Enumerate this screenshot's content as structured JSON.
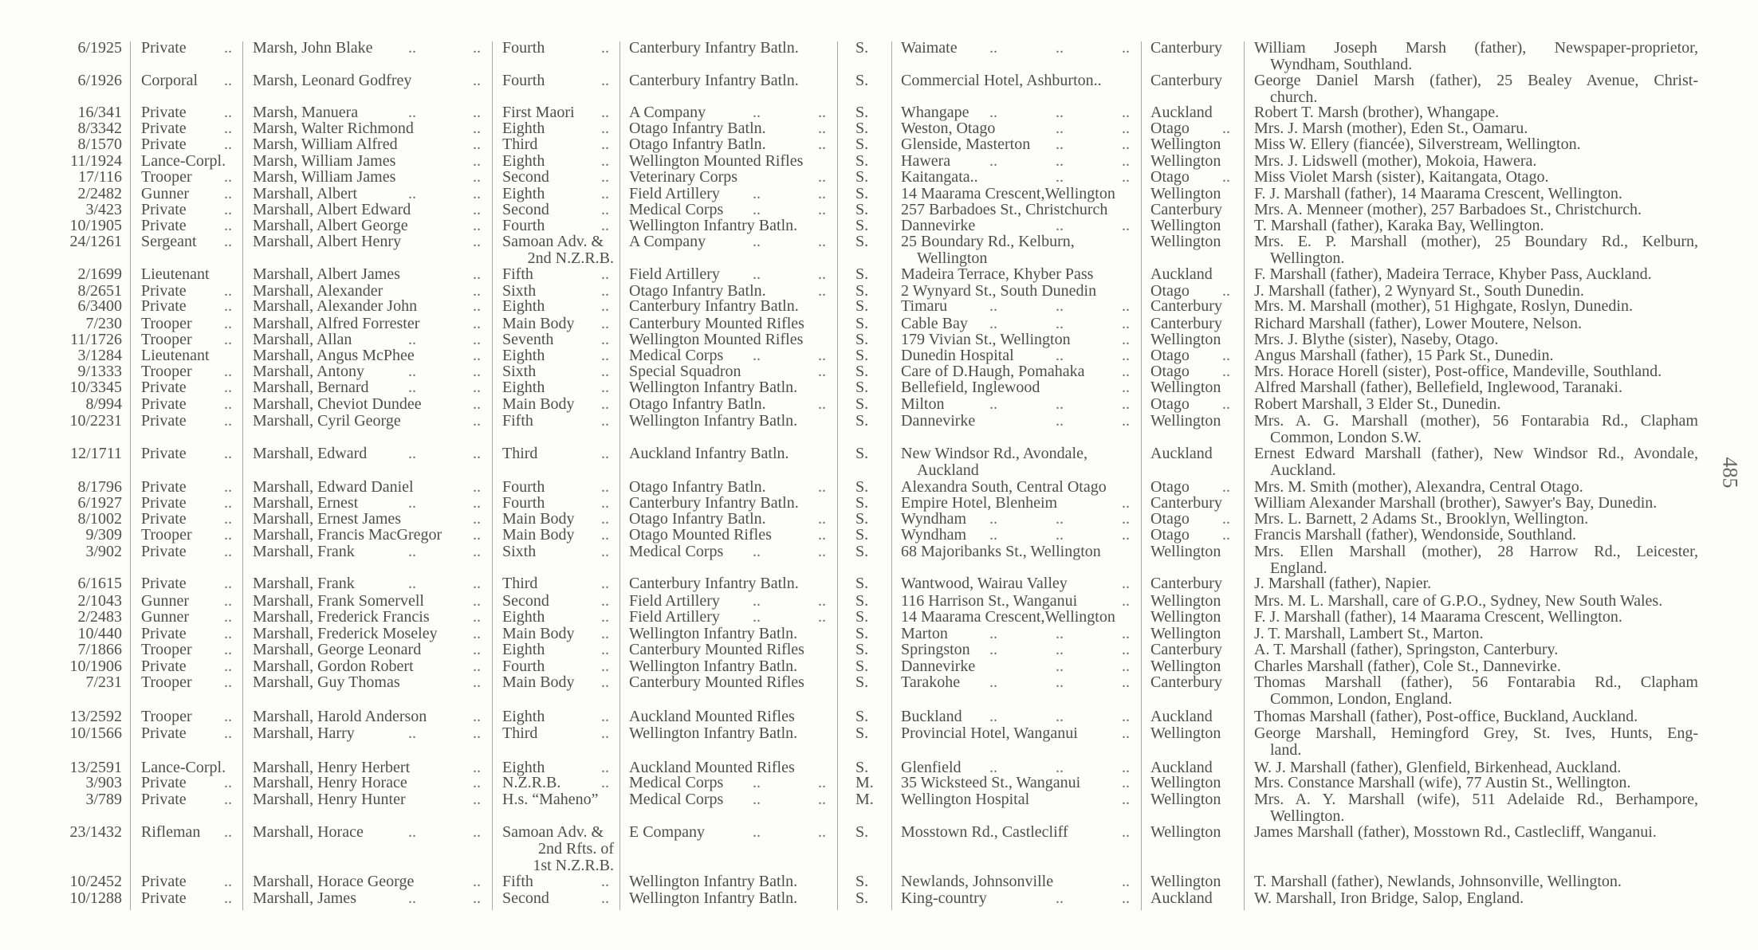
{
  "page_number": "485",
  "rows": [
    {
      "serial": "6/1925",
      "rank": "Private ..",
      "name": "Marsh, John Blake .. ..",
      "draft": "Fourth ..",
      "unit": "Canterbury Infantry Batln.",
      "status": "S.",
      "address": "Waimate .. .. ..",
      "district": "Canterbury",
      "next_of_kin": "William Joseph Marsh (father), Newspaper-proprietor,\nWyndham, Southland."
    },
    {
      "serial": "6/1926",
      "rank": "Corporal ..",
      "name": "Marsh, Leonard Godfrey ..",
      "draft": "Fourth ..",
      "unit": "Canterbury Infantry Batln.",
      "status": "S.",
      "address": "Commercial Hotel, Ashburton..",
      "district": "Canterbury",
      "next_of_kin": "George Daniel Marsh (father), 25 Bealey Avenue, Christ-\nchurch."
    },
    {
      "serial": "16/341",
      "rank": "Private ..",
      "name": "Marsh, Manuera .. ..",
      "draft": "First Maori ..",
      "unit": "A Company .. ..",
      "status": "S.",
      "address": "Whangape .. .. ..",
      "district": "Auckland",
      "next_of_kin": "Robert T. Marsh (brother), Whangape."
    },
    {
      "serial": "8/3342",
      "rank": "Private ..",
      "name": "Marsh, Walter Richmond ..",
      "draft": "Eighth ..",
      "unit": "Otago Infantry Batln. ..",
      "status": "S.",
      "address": "Weston, Otago .. ..",
      "district": "Otago ..",
      "next_of_kin": "Mrs. J. Marsh (mother), Eden St., Oamaru."
    },
    {
      "serial": "8/1570",
      "rank": "Private ..",
      "name": "Marsh, William Alfred ..",
      "draft": "Third ..",
      "unit": "Otago Infantry Batln. ..",
      "status": "S.",
      "address": "Glenside, Masterton .. ..",
      "district": "Wellington",
      "next_of_kin": "Miss W. Ellery (fiancée), Silverstream, Wellington."
    },
    {
      "serial": "11/1924",
      "rank": "Lance-Corpl.",
      "name": "Marsh, William James ..",
      "draft": "Eighth ..",
      "unit": "Wellington Mounted Rifles",
      "status": "S.",
      "address": "Hawera .. .. ..",
      "district": "Wellington",
      "next_of_kin": "Mrs. J. Lidswell (mother), Mokoia, Hawera."
    },
    {
      "serial": "17/116",
      "rank": "Trooper ..",
      "name": "Marsh, William James ..",
      "draft": "Second ..",
      "unit": "Veterinary Corps ..",
      "status": "S.",
      "address": "Kaitangata.. .. ..",
      "district": "Otago ..",
      "next_of_kin": "Miss Violet Marsh (sister), Kaitangata, Otago."
    },
    {
      "serial": "2/2482",
      "rank": "Gunner ..",
      "name": "Marshall, Albert .. ..",
      "draft": "Eighth ..",
      "unit": "Field Artillery .. ..",
      "status": "S.",
      "address": "14 Maarama Crescent,Wellington",
      "district": "Wellington",
      "next_of_kin": "F. J. Marshall (father), 14 Maarama Crescent, Wellington."
    },
    {
      "serial": "3/423",
      "rank": "Private ..",
      "name": "Marshall, Albert Edward ..",
      "draft": "Second ..",
      "unit": "Medical Corps .. ..",
      "status": "S.",
      "address": "257 Barbadoes St., Christchurch",
      "district": "Canterbury",
      "next_of_kin": "Mrs. A. Menneer (mother), 257 Barbadoes St., Christchurch."
    },
    {
      "serial": "10/1905",
      "rank": "Private ..",
      "name": "Marshall, Albert George ..",
      "draft": "Fourth ..",
      "unit": "Wellington Infantry Batln.",
      "status": "S.",
      "address": "Dannevirke .. ..",
      "district": "Wellington",
      "next_of_kin": "T. Marshall (father), Karaka Bay, Wellington."
    },
    {
      "serial": "24/1261",
      "rank": "Sergeant ..",
      "name": "Marshall, Albert Henry ..",
      "draft": "Samoan Adv. &\n2nd N.Z.R.B.",
      "unit": "A Company .. ..",
      "status": "S.",
      "address": "25 Boundary Rd., Kelburn,\nWellington",
      "district": "Wellington",
      "next_of_kin": "Mrs. E. P. Marshall (mother), 25 Boundary Rd., Kelburn,\nWellington."
    },
    {
      "serial": "2/1699",
      "rank": "Lieutenant",
      "name": "Marshall, Albert James ..",
      "draft": "Fifth ..",
      "unit": "Field Artillery .. ..",
      "status": "S.",
      "address": "Madeira Terrace, Khyber Pass",
      "district": "Auckland",
      "next_of_kin": "F. Marshall (father), Madeira Terrace, Khyber Pass, Auckland."
    },
    {
      "serial": "8/2651",
      "rank": "Private ..",
      "name": "Marshall, Alexander ..",
      "draft": "Sixth ..",
      "unit": "Otago Infantry Batln. ..",
      "status": "S.",
      "address": "2 Wynyard St., South Dunedin",
      "district": "Otago ..",
      "next_of_kin": "J. Marshall (father), 2 Wynyard St., South Dunedin."
    },
    {
      "serial": "6/3400",
      "rank": "Private ..",
      "name": "Marshall, Alexander John ..",
      "draft": "Eighth ..",
      "unit": "Canterbury Infantry Batln.",
      "status": "S.",
      "address": "Timaru .. .. ..",
      "district": "Canterbury",
      "next_of_kin": "Mrs. M. Marshall (mother), 51 Highgate, Roslyn, Dunedin."
    },
    {
      "serial": "7/230",
      "rank": "Trooper ..",
      "name": "Marshall, Alfred Forrester ..",
      "draft": "Main Body ..",
      "unit": "Canterbury Mounted Rifles",
      "status": "S.",
      "address": "Cable Bay .. .. ..",
      "district": "Canterbury",
      "next_of_kin": "Richard Marshall (father), Lower Moutere, Nelson."
    },
    {
      "serial": "11/1726",
      "rank": "Trooper ..",
      "name": "Marshall, Allan .. ..",
      "draft": "Seventh ..",
      "unit": "Wellington Mounted Rifles",
      "status": "S.",
      "address": "179 Vivian St., Wellington ..",
      "district": "Wellington",
      "next_of_kin": "Mrs. J. Blythe (sister), Naseby, Otago."
    },
    {
      "serial": "3/1284",
      "rank": "Lieutenant",
      "name": "Marshall, Angus McPhee ..",
      "draft": "Eighth ..",
      "unit": "Medical Corps .. ..",
      "status": "S.",
      "address": "Dunedin Hospital .. ..",
      "district": "Otago ..",
      "next_of_kin": "Angus Marshall (father), 15 Park St., Dunedin."
    },
    {
      "serial": "9/1333",
      "rank": "Trooper ..",
      "name": "Marshall, Antony .. ..",
      "draft": "Sixth ..",
      "unit": "Special Squadron ..",
      "status": "S.",
      "address": "Care of D.Haugh, Pomahaka ..",
      "district": "Otago ..",
      "next_of_kin": "Mrs. Horace Horell (sister), Post-office, Mandeville, Southland."
    },
    {
      "serial": "10/3345",
      "rank": "Private ..",
      "name": "Marshall, Bernard .. ..",
      "draft": "Eighth ..",
      "unit": "Wellington Infantry Batln.",
      "status": "S.",
      "address": "Bellefield, Inglewood ..",
      "district": "Wellington",
      "next_of_kin": "Alfred Marshall (father), Bellefield, Inglewood, Taranaki."
    },
    {
      "serial": "8/994",
      "rank": "Private ..",
      "name": "Marshall, Cheviot Dundee ..",
      "draft": "Main Body ..",
      "unit": "Otago Infantry Batln. ..",
      "status": "S.",
      "address": "Milton .. .. ..",
      "district": "Otago ..",
      "next_of_kin": "Robert Marshall, 3 Elder St., Dunedin."
    },
    {
      "serial": "10/2231",
      "rank": "Private ..",
      "name": "Marshall, Cyril George ..",
      "draft": "Fifth ..",
      "unit": "Wellington Infantry Batln.",
      "status": "S.",
      "address": "Dannevirke .. ..",
      "district": "Wellington",
      "next_of_kin": "Mrs. A. G. Marshall (mother), 56 Fontarabia Rd., Clapham\nCommon, London S.W."
    },
    {
      "serial": "12/1711",
      "rank": "Private ..",
      "name": "Marshall, Edward .. ..",
      "draft": "Third ..",
      "unit": "Auckland Infantry Batln.",
      "status": "S.",
      "address": "New Windsor Rd., Avondale,\nAuckland",
      "district": "Auckland",
      "next_of_kin": "Ernest Edward Marshall (father), New Windsor Rd., Avondale,\nAuckland."
    },
    {
      "serial": "8/1796",
      "rank": "Private ..",
      "name": "Marshall, Edward Daniel ..",
      "draft": "Fourth ..",
      "unit": "Otago Infantry Batln. ..",
      "status": "S.",
      "address": "Alexandra South, Central Otago",
      "district": "Otago ..",
      "next_of_kin": "Mrs. M. Smith (mother), Alexandra, Central Otago."
    },
    {
      "serial": "6/1927",
      "rank": "Private ..",
      "name": "Marshall, Ernest .. ..",
      "draft": "Fourth ..",
      "unit": "Canterbury Infantry Batln.",
      "status": "S.",
      "address": "Empire Hotel, Blenheim ..",
      "district": "Canterbury",
      "next_of_kin": "William Alexander Marshall (brother), Sawyer's Bay, Dunedin."
    },
    {
      "serial": "8/1002",
      "rank": "Private ..",
      "name": "Marshall, Ernest James ..",
      "draft": "Main Body ..",
      "unit": "Otago Infantry Batln. ..",
      "status": "S.",
      "address": "Wyndham .. .. ..",
      "district": "Otago ..",
      "next_of_kin": "Mrs. L. Barnett, 2 Adams St., Brooklyn, Wellington."
    },
    {
      "serial": "9/309",
      "rank": "Trooper ..",
      "name": "Marshall, Francis MacGregor ..",
      "draft": "Main Body ..",
      "unit": "Otago Mounted Rifles ..",
      "status": "S.",
      "address": "Wyndham .. .. ..",
      "district": "Otago ..",
      "next_of_kin": "Francis Marshall (father), Wendonside, Southland."
    },
    {
      "serial": "3/902",
      "rank": "Private ..",
      "name": "Marshall, Frank .. ..",
      "draft": "Sixth ..",
      "unit": "Medical Corps .. ..",
      "status": "S.",
      "address": "68 Majoribanks St., Wellington",
      "district": "Wellington",
      "next_of_kin": "Mrs. Ellen Marshall (mother), 28 Harrow Rd., Leicester,\nEngland."
    },
    {
      "serial": "6/1615",
      "rank": "Private ..",
      "name": "Marshall, Frank .. ..",
      "draft": "Third ..",
      "unit": "Canterbury Infantry Batln.",
      "status": "S.",
      "address": "Wantwood, Wairau Valley ..",
      "district": "Canterbury",
      "next_of_kin": "J. Marshall (father), Napier."
    },
    {
      "serial": "2/1043",
      "rank": "Gunner ..",
      "name": "Marshall, Frank Somervell ..",
      "draft": "Second ..",
      "unit": "Field Artillery .. ..",
      "status": "S.",
      "address": "116 Harrison St., Wanganui ..",
      "district": "Wellington",
      "next_of_kin": "Mrs. M. L. Marshall, care of G.P.O., Sydney, New South Wales."
    },
    {
      "serial": "2/2483",
      "rank": "Gunner ..",
      "name": "Marshall, Frederick Francis ..",
      "draft": "Eighth ..",
      "unit": "Field Artillery .. ..",
      "status": "S.",
      "address": "14 Maarama Crescent,Wellington",
      "district": "Wellington",
      "next_of_kin": "F. J. Marshall (father), 14 Maarama Crescent, Wellington."
    },
    {
      "serial": "10/440",
      "rank": "Private ..",
      "name": "Marshall, Frederick Moseley ..",
      "draft": "Main Body ..",
      "unit": "Wellington Infantry Batln.",
      "status": "S.",
      "address": "Marton .. .. ..",
      "district": "Wellington",
      "next_of_kin": "J. T. Marshall, Lambert St., Marton."
    },
    {
      "serial": "7/1866",
      "rank": "Trooper ..",
      "name": "Marshall, George Leonard ..",
      "draft": "Eighth ..",
      "unit": "Canterbury Mounted Rifles",
      "status": "S.",
      "address": "Springston .. .. ..",
      "district": "Canterbury",
      "next_of_kin": "A. T. Marshall (father), Springston, Canterbury."
    },
    {
      "serial": "10/1906",
      "rank": "Private ..",
      "name": "Marshall, Gordon Robert ..",
      "draft": "Fourth ..",
      "unit": "Wellington Infantry Batln.",
      "status": "S.",
      "address": "Dannevirke .. ..",
      "district": "Wellington",
      "next_of_kin": "Charles Marshall (father), Cole St., Dannevirke."
    },
    {
      "serial": "7/231",
      "rank": "Trooper ..",
      "name": "Marshall, Guy Thomas ..",
      "draft": "Main Body ..",
      "unit": "Canterbury Mounted Rifles",
      "status": "S.",
      "address": "Tarakohe .. .. ..",
      "district": "Canterbury",
      "next_of_kin": "Thomas Marshall (father), 56 Fontarabia Rd., Clapham\nCommon, London, England."
    },
    {
      "serial": "13/2592",
      "rank": "Trooper ..",
      "name": "Marshall, Harold Anderson ..",
      "draft": "Eighth ..",
      "unit": "Auckland Mounted Rifles",
      "status": "S.",
      "address": "Buckland .. .. ..",
      "district": "Auckland",
      "next_of_kin": "Thomas Marshall (father), Post-office, Buckland, Auckland."
    },
    {
      "serial": "10/1566",
      "rank": "Private ..",
      "name": "Marshall, Harry .. ..",
      "draft": "Third ..",
      "unit": "Wellington Infantry Batln.",
      "status": "S.",
      "address": "Provincial Hotel, Wanganui ..",
      "district": "Wellington",
      "next_of_kin": "George Marshall, Hemingford Grey, St. Ives, Hunts, Eng-\nland."
    },
    {
      "serial": "13/2591",
      "rank": "Lance-Corpl.",
      "name": "Marshall, Henry Herbert ..",
      "draft": "Eighth ..",
      "unit": "Auckland Mounted Rifles",
      "status": "S.",
      "address": "Glenfield .. .. ..",
      "district": "Auckland",
      "next_of_kin": "W. J. Marshall (father), Glenfield, Birkenhead, Auckland."
    },
    {
      "serial": "3/903",
      "rank": "Private ..",
      "name": "Marshall, Henry Horace ..",
      "draft": "N.Z.R.B. ..",
      "unit": "Medical Corps .. ..",
      "status": "M.",
      "address": "35 Wicksteed St., Wanganui ..",
      "district": "Wellington",
      "next_of_kin": "Mrs. Constance Marshall (wife), 77 Austin St., Wellington."
    },
    {
      "serial": "3/789",
      "rank": "Private ..",
      "name": "Marshall, Henry Hunter ..",
      "draft": "H.s. “Maheno”",
      "unit": "Medical Corps .. ..",
      "status": "M.",
      "address": "Wellington Hospital ..",
      "district": "Wellington",
      "next_of_kin": "Mrs. A. Y. Marshall (wife), 511 Adelaide Rd., Berhampore,\nWellington."
    },
    {
      "serial": "23/1432",
      "rank": "Rifleman ..",
      "name": "Marshall, Horace .. ..",
      "draft": "Samoan Adv. &\n2nd Rfts. of\n1st N.Z.R.B.",
      "unit": "E Company .. ..",
      "status": "S.",
      "address": "Mosstown Rd., Castlecliff ..",
      "district": "Wellington",
      "next_of_kin": "James Marshall (father), Mosstown Rd., Castlecliff, Wanganui."
    },
    {
      "serial": "10/2452",
      "rank": "Private ..",
      "name": "Marshall, Horace George ..",
      "draft": "Fifth ..",
      "unit": "Wellington Infantry Batln.",
      "status": "S.",
      "address": "Newlands, Johnsonville ..",
      "district": "Wellington",
      "next_of_kin": "T. Marshall (father), Newlands, Johnsonville, Wellington."
    },
    {
      "serial": "10/1288",
      "rank": "Private ..",
      "name": "Marshall, James .. ..",
      "draft": "Second ..",
      "unit": "Wellington Infantry Batln.",
      "status": "S.",
      "address": "King-country .. ..",
      "district": "Auckland",
      "next_of_kin": "W. Marshall, Iron Bridge, Salop, England."
    }
  ]
}
